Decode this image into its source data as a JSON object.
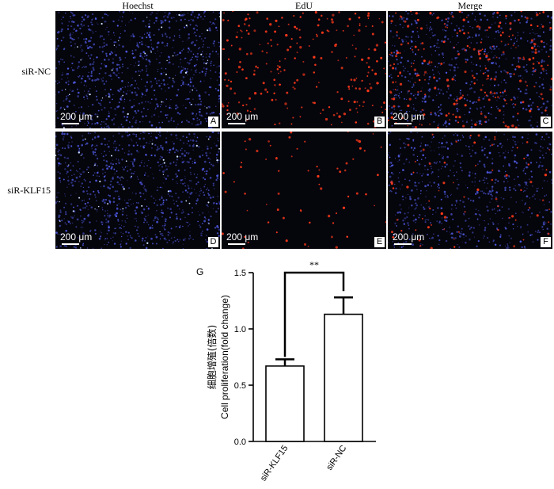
{
  "column_headers": [
    "Hoechst",
    "EdU",
    "Merge"
  ],
  "row_labels": [
    "siR-NC",
    "siR-KLF15"
  ],
  "panels": [
    {
      "letter": "A",
      "scale": "200 μm",
      "stain": "hoechst",
      "row": 0,
      "col": 0
    },
    {
      "letter": "B",
      "scale": "200 μm",
      "stain": "edu",
      "row": 0,
      "col": 1
    },
    {
      "letter": "C",
      "scale": "200 μm",
      "stain": "merge",
      "row": 0,
      "col": 2
    },
    {
      "letter": "D",
      "scale": "200 μm",
      "stain": "hoechst",
      "row": 1,
      "col": 0
    },
    {
      "letter": "E",
      "scale": "200 μm",
      "stain": "edu",
      "row": 1,
      "col": 1
    },
    {
      "letter": "F",
      "scale": "200 μm",
      "stain": "merge",
      "row": 1,
      "col": 2
    }
  ],
  "chart_panel_letter": "G",
  "chart_data": {
    "type": "bar",
    "categories": [
      "siR-KLF15",
      "siR-NC"
    ],
    "values": [
      0.67,
      1.13
    ],
    "errors": [
      0.06,
      0.15
    ],
    "ylabel_cn": "细胞增殖(倍数)",
    "ylabel_en": "Cell proliferation(fold change)",
    "ylim": [
      0.0,
      1.5
    ],
    "yticks": [
      "0.0",
      "0.5",
      "1.0",
      "1.5"
    ],
    "significance": "**"
  },
  "colors": {
    "hoechst": "#5a63d8",
    "edu": "#ff3a1a",
    "panel_bg": "#05050c"
  }
}
